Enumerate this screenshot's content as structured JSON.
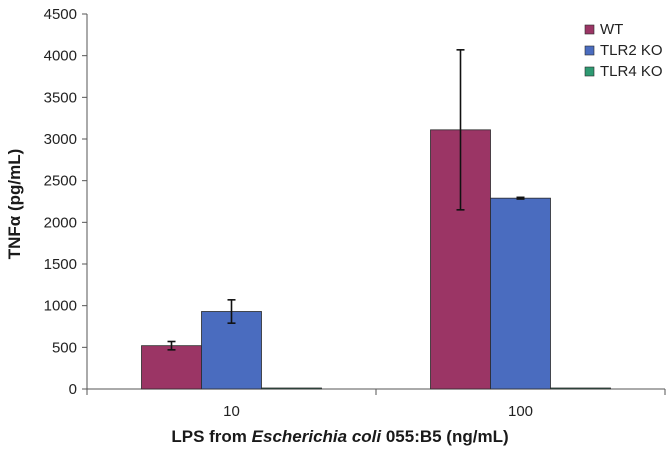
{
  "chart_data": {
    "type": "bar",
    "title": "",
    "xlabel": {
      "prefix": "LPS from ",
      "italic": "Escherichia coli",
      "suffix": " 055:B5 (ng/mL)"
    },
    "ylabel": "TNFα  (pg/mL)",
    "ylim": [
      0,
      4500
    ],
    "yticks": [
      0,
      500,
      1000,
      1500,
      2000,
      2500,
      3000,
      3500,
      4000,
      4500
    ],
    "grid": false,
    "legend_position": "top-right",
    "categories": [
      "10",
      "100"
    ],
    "series": [
      {
        "name": "WT",
        "color": "#9b3565",
        "values": [
          520,
          3110
        ],
        "errors": [
          50,
          960
        ]
      },
      {
        "name": "TLR2 KO",
        "color": "#4a6cbf",
        "values": [
          930,
          2290
        ],
        "errors": [
          140,
          10
        ]
      },
      {
        "name": "TLR4 KO",
        "color": "#2e9a72",
        "values": [
          0,
          0
        ],
        "errors": [
          0,
          0
        ]
      }
    ]
  }
}
